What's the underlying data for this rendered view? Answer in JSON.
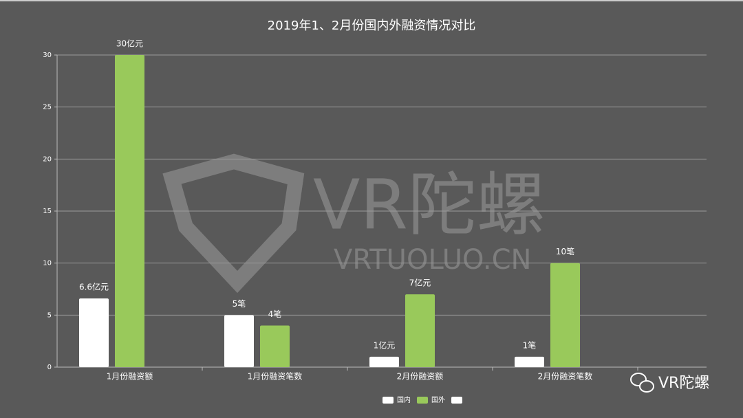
{
  "chart_data": {
    "type": "bar",
    "title": "2019年1、2月份国内外融资情况对比",
    "categories": [
      "1月份融资额",
      "1月份融资笔数",
      "2月份融资额",
      "2月份融资笔数"
    ],
    "series": [
      {
        "name": "国内",
        "color": "#ffffff",
        "values": [
          6.6,
          5,
          1,
          1
        ],
        "value_labels": [
          "6.6亿元",
          "5笔",
          "1亿元",
          "1笔"
        ]
      },
      {
        "name": "国外",
        "color": "#99c95b",
        "values": [
          30,
          4,
          7,
          10
        ],
        "value_labels": [
          "30亿元",
          "4笔",
          "7亿元",
          "10笔"
        ]
      },
      {
        "name": null,
        "color": "#ffffff",
        "values": [
          null,
          null,
          null,
          null
        ]
      }
    ],
    "ylim": [
      0,
      30
    ],
    "yticks": [
      0,
      5,
      10,
      15,
      20,
      25,
      30
    ],
    "grid": true,
    "legend": "bottom"
  },
  "watermark": [
    "VR陀螺",
    "VRTUOLUO.CN"
  ],
  "logo_text": "VR陀螺"
}
